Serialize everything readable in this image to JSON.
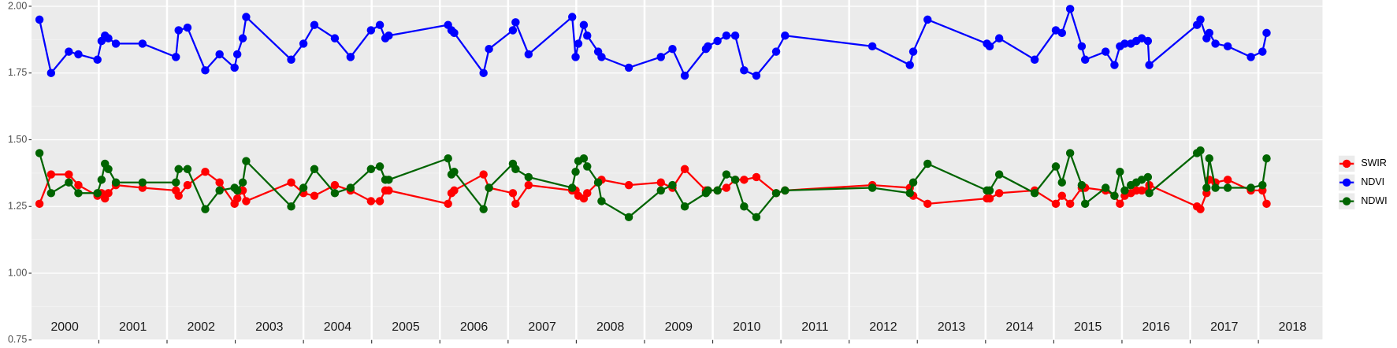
{
  "chart_data": {
    "type": "line",
    "x": [
      2000.13,
      2000.3,
      2000.56,
      2000.7,
      2000.98,
      2001.04,
      2001.09,
      2001.14,
      2001.25,
      2001.64,
      2002.13,
      2002.17,
      2002.3,
      2002.56,
      2002.77,
      2002.99,
      2003.03,
      2003.11,
      2003.16,
      2003.82,
      2004.0,
      2004.16,
      2004.46,
      2004.69,
      2004.99,
      2005.12,
      2005.2,
      2005.25,
      2006.12,
      2006.17,
      2006.21,
      2006.64,
      2006.72,
      2007.07,
      2007.11,
      2007.3,
      2007.94,
      2007.99,
      2008.03,
      2008.11,
      2008.16,
      2008.32,
      2008.37,
      2008.77,
      2009.24,
      2009.41,
      2009.59,
      2009.9,
      2009.93,
      2010.07,
      2010.2,
      2010.33,
      2010.46,
      2010.64,
      2010.93,
      2011.06,
      2012.34,
      2012.89,
      2012.94,
      2013.15,
      2014.02,
      2014.06,
      2014.2,
      2014.72,
      2015.03,
      2015.12,
      2015.24,
      2015.41,
      2015.46,
      2015.76,
      2015.89,
      2015.97,
      2016.04,
      2016.13,
      2016.21,
      2016.29,
      2016.38,
      2016.4,
      2017.1,
      2017.15,
      2017.24,
      2017.28,
      2017.37,
      2017.55,
      2017.89,
      2018.06,
      2018.12
    ],
    "series": [
      {
        "name": "SWIR",
        "color": "#ff0000",
        "values": [
          1.26,
          1.37,
          1.37,
          1.33,
          1.29,
          1.3,
          1.28,
          1.3,
          1.33,
          1.32,
          1.31,
          1.29,
          1.33,
          1.38,
          1.34,
          1.26,
          1.28,
          1.31,
          1.27,
          1.34,
          1.3,
          1.29,
          1.33,
          1.31,
          1.27,
          1.27,
          1.31,
          1.31,
          1.26,
          1.3,
          1.31,
          1.37,
          1.32,
          1.3,
          1.26,
          1.33,
          1.31,
          1.31,
          1.29,
          1.28,
          1.3,
          1.34,
          1.35,
          1.33,
          1.34,
          1.32,
          1.39,
          1.31,
          1.31,
          1.31,
          1.32,
          1.35,
          1.35,
          1.36,
          1.3,
          1.31,
          1.33,
          1.32,
          1.29,
          1.26,
          1.28,
          1.28,
          1.3,
          1.31,
          1.26,
          1.29,
          1.26,
          1.32,
          1.32,
          1.31,
          1.29,
          1.26,
          1.29,
          1.3,
          1.31,
          1.31,
          1.31,
          1.33,
          1.25,
          1.24,
          1.3,
          1.35,
          1.34,
          1.35,
          1.31,
          1.31,
          1.26
        ]
      },
      {
        "name": "NDVI",
        "color": "#0000ff",
        "values": [
          1.95,
          1.75,
          1.83,
          1.82,
          1.8,
          1.87,
          1.89,
          1.88,
          1.86,
          1.86,
          1.81,
          1.91,
          1.92,
          1.76,
          1.82,
          1.77,
          1.82,
          1.88,
          1.96,
          1.8,
          1.86,
          1.93,
          1.88,
          1.81,
          1.91,
          1.93,
          1.88,
          1.89,
          1.93,
          1.91,
          1.9,
          1.75,
          1.84,
          1.91,
          1.94,
          1.82,
          1.96,
          1.81,
          1.86,
          1.93,
          1.89,
          1.83,
          1.81,
          1.77,
          1.81,
          1.84,
          1.74,
          1.84,
          1.85,
          1.87,
          1.89,
          1.89,
          1.76,
          1.74,
          1.83,
          1.89,
          1.85,
          1.78,
          1.83,
          1.95,
          1.86,
          1.85,
          1.88,
          1.8,
          1.91,
          1.9,
          1.99,
          1.85,
          1.8,
          1.83,
          1.78,
          1.85,
          1.86,
          1.86,
          1.87,
          1.88,
          1.87,
          1.78,
          1.93,
          1.95,
          1.88,
          1.9,
          1.86,
          1.85,
          1.81,
          1.83,
          1.9
        ]
      },
      {
        "name": "NDWI",
        "color": "#006400",
        "values": [
          1.45,
          1.3,
          1.34,
          1.3,
          1.3,
          1.35,
          1.41,
          1.39,
          1.34,
          1.34,
          1.34,
          1.39,
          1.39,
          1.24,
          1.31,
          1.32,
          1.31,
          1.34,
          1.42,
          1.25,
          1.32,
          1.39,
          1.3,
          1.32,
          1.39,
          1.4,
          1.35,
          1.35,
          1.43,
          1.37,
          1.38,
          1.24,
          1.32,
          1.41,
          1.39,
          1.36,
          1.32,
          1.38,
          1.42,
          1.43,
          1.4,
          1.34,
          1.27,
          1.21,
          1.31,
          1.33,
          1.25,
          1.3,
          1.31,
          1.31,
          1.37,
          1.35,
          1.25,
          1.21,
          1.3,
          1.31,
          1.32,
          1.3,
          1.34,
          1.41,
          1.31,
          1.31,
          1.37,
          1.3,
          1.4,
          1.34,
          1.45,
          1.33,
          1.26,
          1.32,
          1.29,
          1.38,
          1.31,
          1.33,
          1.34,
          1.35,
          1.36,
          1.3,
          1.45,
          1.46,
          1.32,
          1.43,
          1.32,
          1.32,
          1.32,
          1.33,
          1.43
        ]
      }
    ],
    "xlim": [
      2000,
      2018.94
    ],
    "xticks": [
      {
        "value": 2000.5,
        "label": "2000"
      },
      {
        "value": 2001.5,
        "label": "2001"
      },
      {
        "value": 2002.5,
        "label": "2002"
      },
      {
        "value": 2003.5,
        "label": "2003"
      },
      {
        "value": 2004.5,
        "label": "2004"
      },
      {
        "value": 2005.5,
        "label": "2005"
      },
      {
        "value": 2006.5,
        "label": "2006"
      },
      {
        "value": 2007.5,
        "label": "2007"
      },
      {
        "value": 2008.5,
        "label": "2008"
      },
      {
        "value": 2009.5,
        "label": "2009"
      },
      {
        "value": 2010.5,
        "label": "2010"
      },
      {
        "value": 2011.5,
        "label": "2011"
      },
      {
        "value": 2012.5,
        "label": "2012"
      },
      {
        "value": 2013.5,
        "label": "2013"
      },
      {
        "value": 2014.5,
        "label": "2014"
      },
      {
        "value": 2015.5,
        "label": "2015"
      },
      {
        "value": 2016.5,
        "label": "2016"
      },
      {
        "value": 2017.5,
        "label": "2017"
      },
      {
        "value": 2018.5,
        "label": "2018"
      }
    ],
    "xgrid": [
      2001,
      2002,
      2003,
      2004,
      2005,
      2006,
      2007,
      2008,
      2009,
      2010,
      2011,
      2012,
      2013,
      2014,
      2015,
      2016,
      2017,
      2018
    ],
    "ylim": [
      0.75,
      2.0
    ],
    "yticks": [
      {
        "value": 0.75,
        "label": "0.75"
      },
      {
        "value": 1,
        "label": "1.00"
      },
      {
        "value": 1.25,
        "label": "1.25"
      },
      {
        "value": 1.5,
        "label": "1.50"
      },
      {
        "value": 1.75,
        "label": "1.75"
      },
      {
        "value": 2,
        "label": "2.00"
      }
    ],
    "grid": true,
    "legend": "right"
  }
}
